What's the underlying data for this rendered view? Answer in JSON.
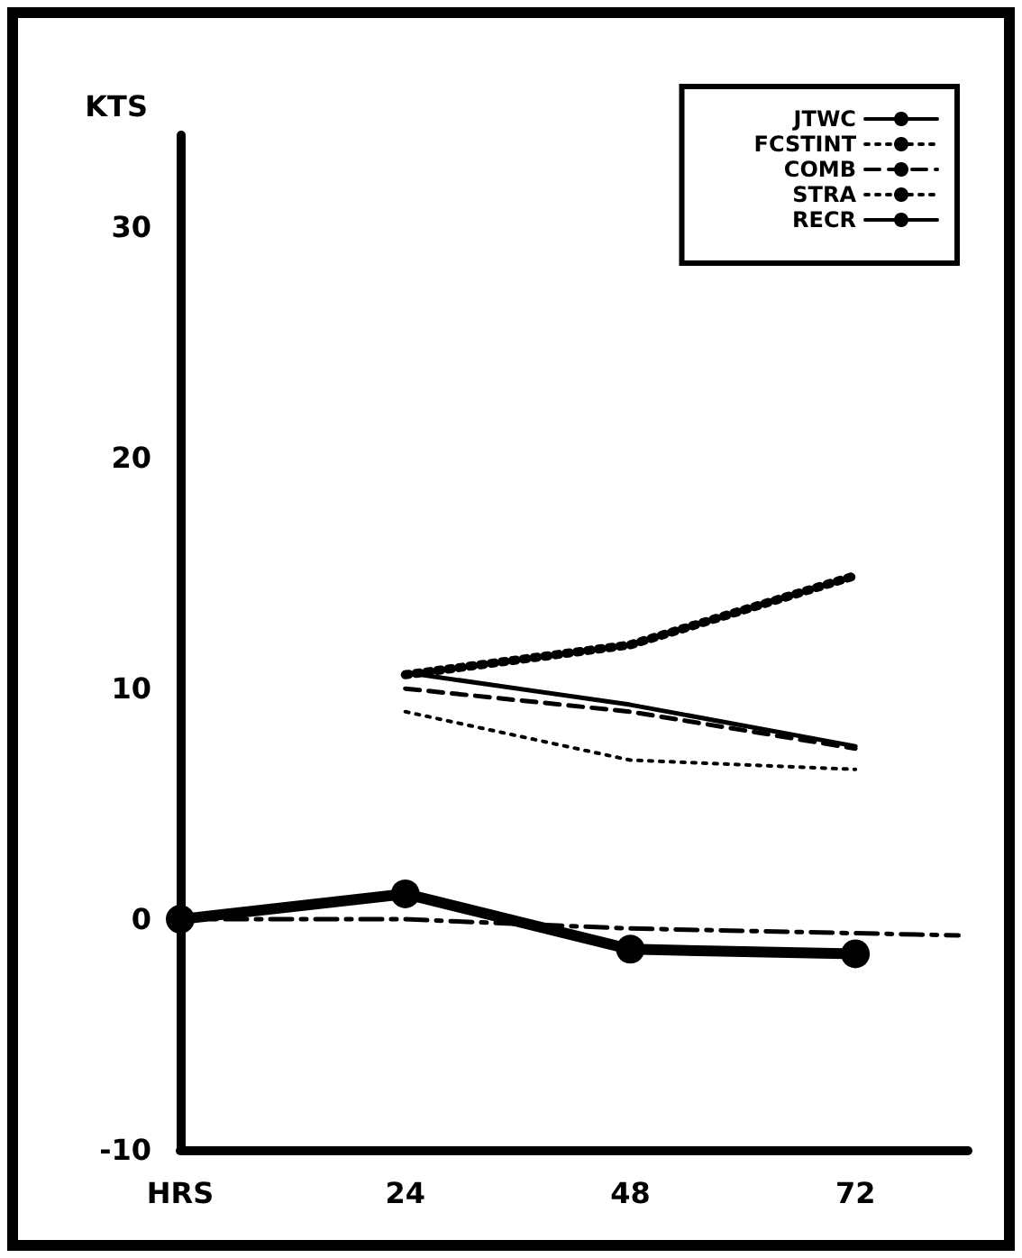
{
  "chart_data": {
    "type": "line",
    "ylabel": "KTS",
    "x": [
      0,
      24,
      48,
      72
    ],
    "xlim": [
      0,
      84
    ],
    "xticks": [
      {
        "value": 0,
        "label": "HRS"
      },
      24,
      48,
      72
    ],
    "ylim": [
      -10,
      34
    ],
    "yticks": [
      -10,
      0,
      10,
      20,
      30
    ],
    "grid": false,
    "legend": "top right",
    "series": [
      {
        "name": "JTWC",
        "color": "#000000",
        "values": [
          0,
          1.1,
          -1.3,
          -1.5
        ],
        "marker": "circle",
        "line_style": "solid"
      },
      {
        "name": "FCSTINT",
        "color": "#000000",
        "x": [
          24,
          48,
          72
        ],
        "values": [
          10.6,
          11.9,
          14.9
        ],
        "marker": "none",
        "line_style": "dotted"
      },
      {
        "name": "COMB",
        "color": "#000000",
        "x": [
          24,
          48,
          72
        ],
        "values": [
          10.0,
          9.0,
          7.4
        ],
        "marker": "none",
        "line_style": "dashed"
      },
      {
        "name": "STRA",
        "color": "#000000",
        "x": [
          24,
          48,
          72
        ],
        "values": [
          9.0,
          6.9,
          6.5
        ],
        "marker": "none",
        "line_style": "dotted"
      },
      {
        "name": "RECR",
        "color": "#000000",
        "x": [
          24,
          48,
          72
        ],
        "values": [
          10.7,
          9.3,
          7.5
        ],
        "marker": "none",
        "line_style": "solid"
      },
      {
        "color": "#000000",
        "x": [
          0,
          24,
          48,
          83
        ],
        "values": [
          0,
          0,
          -0.4,
          -0.7
        ],
        "marker": "none",
        "line_style": "dashdot"
      }
    ]
  }
}
